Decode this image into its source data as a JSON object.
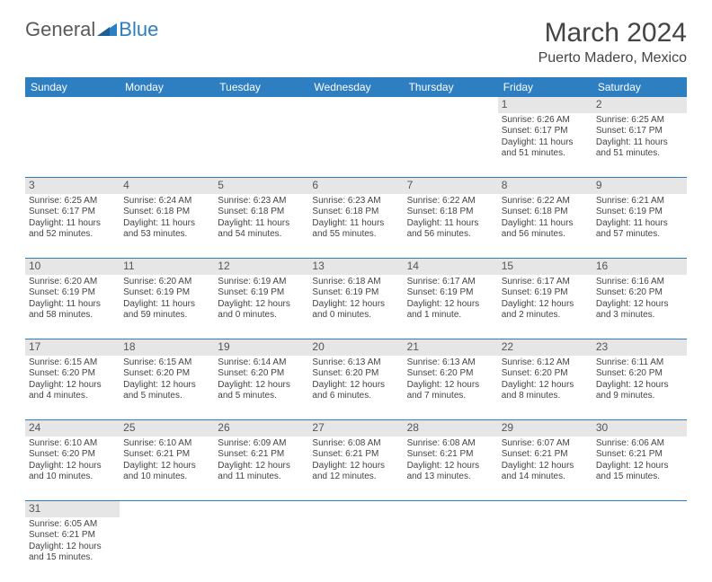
{
  "brand": {
    "general": "General",
    "blue": "Blue"
  },
  "title": "March 2024",
  "location": "Puerto Madero, Mexico",
  "colors": {
    "header_bg": "#2e7ec2",
    "header_text": "#ffffff",
    "daynum_bg": "#e6e6e6",
    "row_divider": "#2e7ec2",
    "text": "#444444",
    "background": "#ffffff"
  },
  "fonts": {
    "title_size_pt": 22,
    "location_size_pt": 12,
    "weekday_size_pt": 9,
    "daynum_size_pt": 9,
    "cell_size_pt": 7.5
  },
  "weekdays": [
    "Sunday",
    "Monday",
    "Tuesday",
    "Wednesday",
    "Thursday",
    "Friday",
    "Saturday"
  ],
  "weeks": [
    [
      null,
      null,
      null,
      null,
      null,
      {
        "n": "1",
        "sr": "Sunrise: 6:26 AM",
        "ss": "Sunset: 6:17 PM",
        "dl": "Daylight: 11 hours and 51 minutes."
      },
      {
        "n": "2",
        "sr": "Sunrise: 6:25 AM",
        "ss": "Sunset: 6:17 PM",
        "dl": "Daylight: 11 hours and 51 minutes."
      }
    ],
    [
      {
        "n": "3",
        "sr": "Sunrise: 6:25 AM",
        "ss": "Sunset: 6:17 PM",
        "dl": "Daylight: 11 hours and 52 minutes."
      },
      {
        "n": "4",
        "sr": "Sunrise: 6:24 AM",
        "ss": "Sunset: 6:18 PM",
        "dl": "Daylight: 11 hours and 53 minutes."
      },
      {
        "n": "5",
        "sr": "Sunrise: 6:23 AM",
        "ss": "Sunset: 6:18 PM",
        "dl": "Daylight: 11 hours and 54 minutes."
      },
      {
        "n": "6",
        "sr": "Sunrise: 6:23 AM",
        "ss": "Sunset: 6:18 PM",
        "dl": "Daylight: 11 hours and 55 minutes."
      },
      {
        "n": "7",
        "sr": "Sunrise: 6:22 AM",
        "ss": "Sunset: 6:18 PM",
        "dl": "Daylight: 11 hours and 56 minutes."
      },
      {
        "n": "8",
        "sr": "Sunrise: 6:22 AM",
        "ss": "Sunset: 6:18 PM",
        "dl": "Daylight: 11 hours and 56 minutes."
      },
      {
        "n": "9",
        "sr": "Sunrise: 6:21 AM",
        "ss": "Sunset: 6:19 PM",
        "dl": "Daylight: 11 hours and 57 minutes."
      }
    ],
    [
      {
        "n": "10",
        "sr": "Sunrise: 6:20 AM",
        "ss": "Sunset: 6:19 PM",
        "dl": "Daylight: 11 hours and 58 minutes."
      },
      {
        "n": "11",
        "sr": "Sunrise: 6:20 AM",
        "ss": "Sunset: 6:19 PM",
        "dl": "Daylight: 11 hours and 59 minutes."
      },
      {
        "n": "12",
        "sr": "Sunrise: 6:19 AM",
        "ss": "Sunset: 6:19 PM",
        "dl": "Daylight: 12 hours and 0 minutes."
      },
      {
        "n": "13",
        "sr": "Sunrise: 6:18 AM",
        "ss": "Sunset: 6:19 PM",
        "dl": "Daylight: 12 hours and 0 minutes."
      },
      {
        "n": "14",
        "sr": "Sunrise: 6:17 AM",
        "ss": "Sunset: 6:19 PM",
        "dl": "Daylight: 12 hours and 1 minute."
      },
      {
        "n": "15",
        "sr": "Sunrise: 6:17 AM",
        "ss": "Sunset: 6:19 PM",
        "dl": "Daylight: 12 hours and 2 minutes."
      },
      {
        "n": "16",
        "sr": "Sunrise: 6:16 AM",
        "ss": "Sunset: 6:20 PM",
        "dl": "Daylight: 12 hours and 3 minutes."
      }
    ],
    [
      {
        "n": "17",
        "sr": "Sunrise: 6:15 AM",
        "ss": "Sunset: 6:20 PM",
        "dl": "Daylight: 12 hours and 4 minutes."
      },
      {
        "n": "18",
        "sr": "Sunrise: 6:15 AM",
        "ss": "Sunset: 6:20 PM",
        "dl": "Daylight: 12 hours and 5 minutes."
      },
      {
        "n": "19",
        "sr": "Sunrise: 6:14 AM",
        "ss": "Sunset: 6:20 PM",
        "dl": "Daylight: 12 hours and 5 minutes."
      },
      {
        "n": "20",
        "sr": "Sunrise: 6:13 AM",
        "ss": "Sunset: 6:20 PM",
        "dl": "Daylight: 12 hours and 6 minutes."
      },
      {
        "n": "21",
        "sr": "Sunrise: 6:13 AM",
        "ss": "Sunset: 6:20 PM",
        "dl": "Daylight: 12 hours and 7 minutes."
      },
      {
        "n": "22",
        "sr": "Sunrise: 6:12 AM",
        "ss": "Sunset: 6:20 PM",
        "dl": "Daylight: 12 hours and 8 minutes."
      },
      {
        "n": "23",
        "sr": "Sunrise: 6:11 AM",
        "ss": "Sunset: 6:20 PM",
        "dl": "Daylight: 12 hours and 9 minutes."
      }
    ],
    [
      {
        "n": "24",
        "sr": "Sunrise: 6:10 AM",
        "ss": "Sunset: 6:20 PM",
        "dl": "Daylight: 12 hours and 10 minutes."
      },
      {
        "n": "25",
        "sr": "Sunrise: 6:10 AM",
        "ss": "Sunset: 6:21 PM",
        "dl": "Daylight: 12 hours and 10 minutes."
      },
      {
        "n": "26",
        "sr": "Sunrise: 6:09 AM",
        "ss": "Sunset: 6:21 PM",
        "dl": "Daylight: 12 hours and 11 minutes."
      },
      {
        "n": "27",
        "sr": "Sunrise: 6:08 AM",
        "ss": "Sunset: 6:21 PM",
        "dl": "Daylight: 12 hours and 12 minutes."
      },
      {
        "n": "28",
        "sr": "Sunrise: 6:08 AM",
        "ss": "Sunset: 6:21 PM",
        "dl": "Daylight: 12 hours and 13 minutes."
      },
      {
        "n": "29",
        "sr": "Sunrise: 6:07 AM",
        "ss": "Sunset: 6:21 PM",
        "dl": "Daylight: 12 hours and 14 minutes."
      },
      {
        "n": "30",
        "sr": "Sunrise: 6:06 AM",
        "ss": "Sunset: 6:21 PM",
        "dl": "Daylight: 12 hours and 15 minutes."
      }
    ],
    [
      {
        "n": "31",
        "sr": "Sunrise: 6:05 AM",
        "ss": "Sunset: 6:21 PM",
        "dl": "Daylight: 12 hours and 15 minutes."
      },
      null,
      null,
      null,
      null,
      null,
      null
    ]
  ]
}
